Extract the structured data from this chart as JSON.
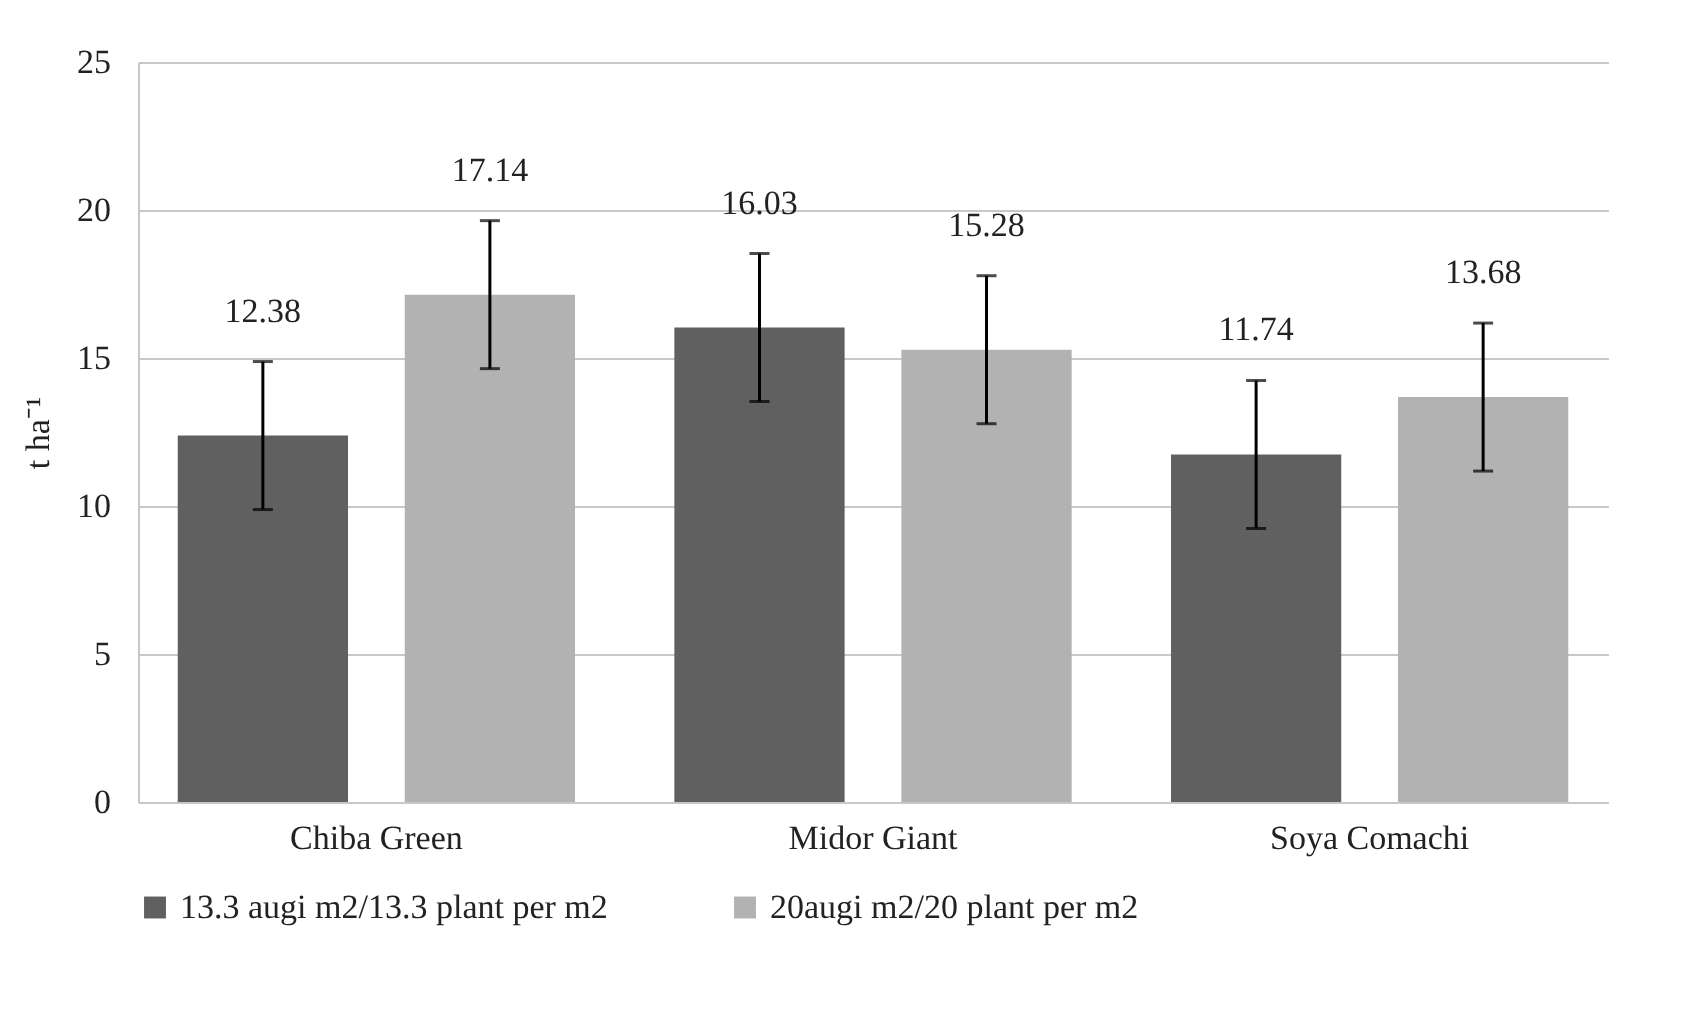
{
  "chart_data": {
    "type": "bar",
    "ylabel": "t ha⁻¹",
    "categories": [
      "Chiba Green",
      "Midor Giant",
      "Soya Comachi"
    ],
    "series": [
      {
        "name": "13.3 augi m2/13.3 plant per m2",
        "color": "#606060",
        "values": [
          12.38,
          16.03,
          11.74
        ],
        "errors": [
          2.5,
          2.5,
          2.5
        ]
      },
      {
        "name": "20augi m2/20 plant per m2",
        "color": "#b2b2b2",
        "values": [
          17.14,
          15.28,
          13.68
        ],
        "errors": [
          2.5,
          2.5,
          2.5
        ]
      }
    ],
    "ylim": [
      0,
      25
    ],
    "yticks": [
      0,
      5,
      10,
      15,
      20,
      25
    ],
    "grid": "y",
    "legend": "bottom",
    "data_labels": true
  }
}
